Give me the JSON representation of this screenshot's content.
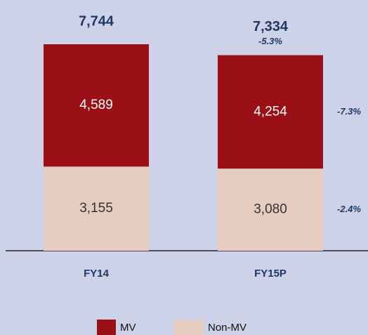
{
  "chart_data": {
    "type": "stacked_bar",
    "categories": [
      "FY14",
      "FY15P"
    ],
    "series": [
      {
        "name": "Non-MV",
        "color": "#e6cbbf",
        "values": [
          3155,
          3080
        ],
        "value_labels": [
          "3,155",
          "3,080"
        ],
        "change_label": "-2.4%"
      },
      {
        "name": "MV",
        "color": "#9b0f17",
        "values": [
          4589,
          4254
        ],
        "value_labels": [
          "4,589",
          "4,254"
        ],
        "change_label": "-7.3%"
      }
    ],
    "totals": [
      7744,
      7334
    ],
    "total_labels": [
      "7,744",
      "7,334"
    ],
    "total_change_label": "-5.3%",
    "legend_order": [
      1,
      0
    ]
  }
}
